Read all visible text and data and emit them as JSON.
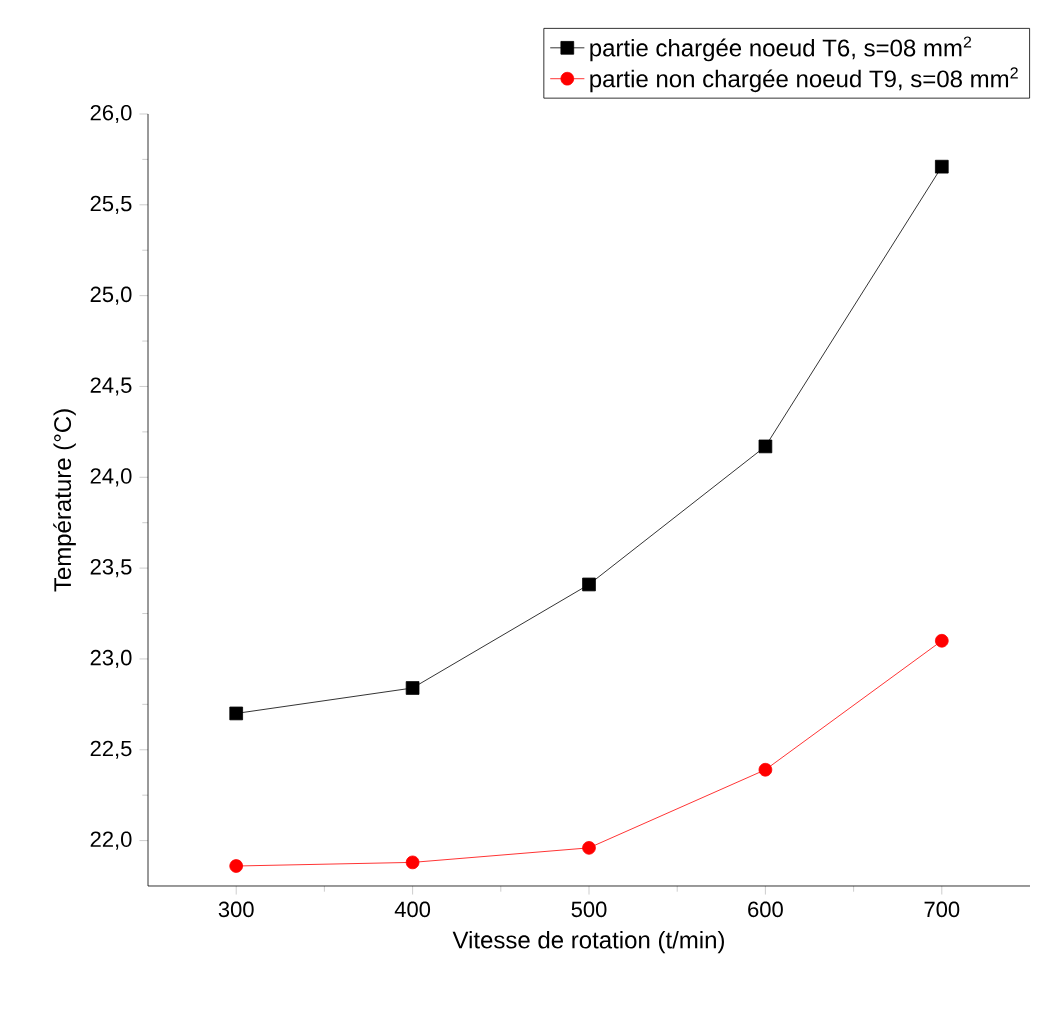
{
  "chart_data": {
    "type": "line",
    "xlabel": "Vitesse de rotation (t/min)",
    "ylabel": "Température (°C)",
    "x": [
      300,
      400,
      500,
      600,
      700
    ],
    "series": [
      {
        "name": "partie chargée noeud T6, s=08 mm$^{2}$",
        "color": "#000000",
        "marker": "square",
        "values": [
          22.7,
          22.84,
          23.41,
          24.17,
          25.71
        ]
      },
      {
        "name": "partie non chargée noeud T9, s=08 mm$^{2}$",
        "color": "#ff0000",
        "marker": "circle",
        "values": [
          21.86,
          21.88,
          21.96,
          22.39,
          23.1
        ]
      }
    ],
    "xlim": [
      250,
      750
    ],
    "ylim": [
      21.75,
      26.0
    ],
    "xticks": [
      300,
      400,
      500,
      600,
      700
    ],
    "yticks": [
      {
        "value": 22.0,
        "label": "22,0"
      },
      {
        "value": 22.5,
        "label": "22,5"
      },
      {
        "value": 23.0,
        "label": "23,0"
      },
      {
        "value": 23.5,
        "label": "23,5"
      },
      {
        "value": 24.0,
        "label": "24,0"
      },
      {
        "value": 24.5,
        "label": "24,5"
      },
      {
        "value": 25.0,
        "label": "25,0"
      },
      {
        "value": 25.5,
        "label": "25,5"
      },
      {
        "value": 26.0,
        "label": "26,0"
      }
    ],
    "legend": "top right",
    "grid": false,
    "line_style": "solid"
  }
}
